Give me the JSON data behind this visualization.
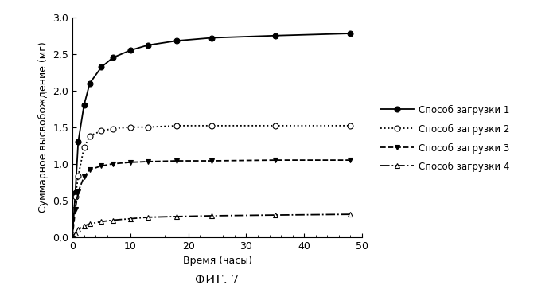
{
  "series": [
    {
      "label": "Способ загрузки 1",
      "x": [
        0,
        0.5,
        1,
        2,
        3,
        5,
        7,
        10,
        13,
        18,
        24,
        35,
        48
      ],
      "y": [
        0.0,
        0.6,
        1.3,
        1.8,
        2.1,
        2.32,
        2.45,
        2.55,
        2.62,
        2.68,
        2.72,
        2.75,
        2.78
      ],
      "linestyle": "-",
      "marker": "o",
      "markerfacecolor": "black",
      "markeredgecolor": "black",
      "color": "black",
      "linewidth": 1.3,
      "markersize": 5
    },
    {
      "label": "Способ загрузки 2",
      "x": [
        0,
        0.5,
        1,
        2,
        3,
        5,
        7,
        10,
        13,
        18,
        24,
        35,
        48
      ],
      "y": [
        0.0,
        0.55,
        0.83,
        1.22,
        1.38,
        1.45,
        1.48,
        1.5,
        1.5,
        1.52,
        1.52,
        1.52,
        1.52
      ],
      "linestyle": ":",
      "marker": "o",
      "markerfacecolor": "white",
      "markeredgecolor": "black",
      "color": "black",
      "linewidth": 1.3,
      "markersize": 5
    },
    {
      "label": "Способ загрузки 3",
      "x": [
        0,
        0.5,
        1,
        2,
        3,
        5,
        7,
        10,
        13,
        18,
        24,
        35,
        48
      ],
      "y": [
        0.0,
        0.38,
        0.62,
        0.82,
        0.92,
        0.97,
        1.0,
        1.02,
        1.03,
        1.04,
        1.04,
        1.05,
        1.05
      ],
      "linestyle": "--",
      "marker": "v",
      "markerfacecolor": "black",
      "markeredgecolor": "black",
      "color": "black",
      "linewidth": 1.3,
      "markersize": 5
    },
    {
      "label": "Способ загрузки 4",
      "x": [
        0,
        0.5,
        1,
        2,
        3,
        5,
        7,
        10,
        13,
        18,
        24,
        35,
        48
      ],
      "y": [
        0.0,
        0.05,
        0.1,
        0.15,
        0.18,
        0.21,
        0.23,
        0.25,
        0.27,
        0.28,
        0.29,
        0.3,
        0.31
      ],
      "linestyle": "-.",
      "marker": "^",
      "markerfacecolor": "white",
      "markeredgecolor": "black",
      "color": "black",
      "linewidth": 1.3,
      "markersize": 5
    }
  ],
  "xlabel": "Время (часы)",
  "ylabel": "Суммарное высвобождение (мг)",
  "xlim": [
    0,
    50
  ],
  "ylim": [
    0.0,
    3.0
  ],
  "xticks_major": [
    0,
    10,
    20,
    30,
    40,
    50
  ],
  "yticks": [
    0.0,
    0.5,
    1.0,
    1.5,
    2.0,
    2.5,
    3.0
  ],
  "figure_label": "ФИГ. 7",
  "background_color": "#ffffff"
}
